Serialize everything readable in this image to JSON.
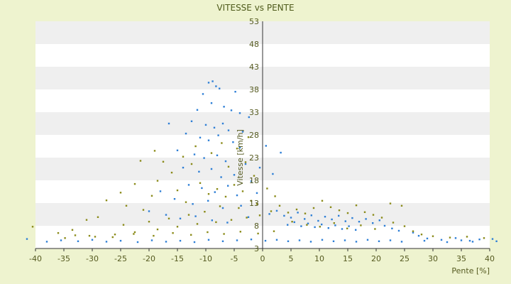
{
  "chart_data": {
    "type": "scatter",
    "title": "VITESSE vs PENTE",
    "xlabel": "Pente [%]",
    "ylabel": "Vitesse [km/h]",
    "xlim": [
      -40,
      40
    ],
    "ylim": [
      3,
      53
    ],
    "x_ticks": [
      "-40",
      "-35",
      "-30",
      "-25",
      "-20",
      "-15",
      "-10",
      "-5",
      "0",
      "5",
      "10",
      "15",
      "20",
      "25",
      "30",
      "35",
      "40"
    ],
    "y_ticks": [
      "3",
      "8",
      "13",
      "18",
      "23",
      "28",
      "33",
      "38",
      "43",
      "48",
      "53"
    ],
    "grid": "alternating horizontal bands",
    "colors": {
      "background": "#eef3cf",
      "band_light": "#ffffff",
      "band_dark": "#efefef",
      "axis": "#333333",
      "series_1": "#2e7fd6",
      "series_2": "#8b8b1a"
    },
    "series": [
      {
        "color": "#2e7fd6",
        "points": [
          [
            -9.5,
            39.5
          ],
          [
            -8.8,
            39.8
          ],
          [
            -8.2,
            38.7
          ],
          [
            -7.6,
            38.2
          ],
          [
            -10.5,
            37.0
          ],
          [
            -4.8,
            37.5
          ],
          [
            -11.5,
            33.5
          ],
          [
            -9.0,
            35.0
          ],
          [
            -6.8,
            34.2
          ],
          [
            -5.5,
            33.4
          ],
          [
            -4.0,
            32.8
          ],
          [
            -2.4,
            31.9
          ],
          [
            -12.5,
            31.0
          ],
          [
            -10.0,
            30.2
          ],
          [
            -8.5,
            29.6
          ],
          [
            -7.0,
            30.5
          ],
          [
            -6.0,
            29.0
          ],
          [
            -3.5,
            28.7
          ],
          [
            -13.5,
            28.3
          ],
          [
            -11.0,
            27.4
          ],
          [
            -9.5,
            26.8
          ],
          [
            -7.8,
            27.9
          ],
          [
            -5.2,
            26.4
          ],
          [
            -4.0,
            25.2
          ],
          [
            -15.0,
            24.6
          ],
          [
            -12.0,
            23.7
          ],
          [
            -10.3,
            22.9
          ],
          [
            -8.0,
            23.5
          ],
          [
            -6.5,
            22.2
          ],
          [
            -3.0,
            21.6
          ],
          [
            -16.5,
            30.5
          ],
          [
            -14.0,
            20.8
          ],
          [
            -11.2,
            19.9
          ],
          [
            -9.0,
            20.5
          ],
          [
            -7.3,
            18.7
          ],
          [
            -5.0,
            19.2
          ],
          [
            -2.0,
            17.8
          ],
          [
            -13.0,
            17.0
          ],
          [
            -10.7,
            16.3
          ],
          [
            -8.4,
            15.4
          ],
          [
            -6.1,
            16.8
          ],
          [
            -4.5,
            14.7
          ],
          [
            -18.0,
            15.6
          ],
          [
            -15.5,
            13.9
          ],
          [
            -12.3,
            12.8
          ],
          [
            -9.6,
            13.5
          ],
          [
            -7.0,
            11.9
          ],
          [
            -3.8,
            12.4
          ],
          [
            -1.0,
            15.2
          ],
          [
            -0.5,
            20.8
          ],
          [
            0.6,
            25.6
          ],
          [
            1.8,
            19.4
          ],
          [
            3.2,
            24.1
          ],
          [
            -20.0,
            11.2
          ],
          [
            -17.0,
            10.4
          ],
          [
            -14.5,
            9.6
          ],
          [
            -11.8,
            10.1
          ],
          [
            -8.9,
            9.2
          ],
          [
            -6.2,
            8.7
          ],
          [
            -2.5,
            9.9
          ],
          [
            1.2,
            10.6
          ],
          [
            2.5,
            11.3
          ],
          [
            3.8,
            10.2
          ],
          [
            5.0,
            9.8
          ],
          [
            6.2,
            10.9
          ],
          [
            7.4,
            9.5
          ],
          [
            8.6,
            10.3
          ],
          [
            9.8,
            9.1
          ],
          [
            11.0,
            10.0
          ],
          [
            12.2,
            9.4
          ],
          [
            13.4,
            10.2
          ],
          [
            14.6,
            9.0
          ],
          [
            15.8,
            9.7
          ],
          [
            17.0,
            8.9
          ],
          [
            18.2,
            9.5
          ],
          [
            19.4,
            8.6
          ],
          [
            20.6,
            9.2
          ],
          [
            4.4,
            8.2
          ],
          [
            5.6,
            8.8
          ],
          [
            6.8,
            7.9
          ],
          [
            8.0,
            8.5
          ],
          [
            9.2,
            7.7
          ],
          [
            10.4,
            8.3
          ],
          [
            11.6,
            7.5
          ],
          [
            12.8,
            8.1
          ],
          [
            14.0,
            7.3
          ],
          [
            15.2,
            7.9
          ],
          [
            16.4,
            7.1
          ],
          [
            21.5,
            8.0
          ],
          [
            22.8,
            7.4
          ],
          [
            24.0,
            6.9
          ],
          [
            26.5,
            6.5
          ],
          [
            27.5,
            5.8
          ],
          [
            29.0,
            5.2
          ],
          [
            31.5,
            4.9
          ],
          [
            34.0,
            5.3
          ],
          [
            36.5,
            4.7
          ],
          [
            38.2,
            5.0
          ],
          [
            40.5,
            5.1
          ],
          [
            41.2,
            4.6
          ],
          [
            -41.5,
            5.1
          ],
          [
            -38.0,
            4.5
          ],
          [
            -35.5,
            4.8
          ],
          [
            -32.5,
            4.6
          ],
          [
            -30.0,
            4.9
          ],
          [
            -27.5,
            4.5
          ],
          [
            -25.0,
            4.7
          ],
          [
            -22.0,
            4.4
          ],
          [
            -19.5,
            4.8
          ],
          [
            -17.0,
            4.5
          ],
          [
            -14.5,
            4.7
          ],
          [
            -12.0,
            4.4
          ],
          [
            -9.5,
            4.9
          ],
          [
            -7.0,
            4.6
          ],
          [
            -4.5,
            4.8
          ],
          [
            -2.0,
            5.0
          ],
          [
            0.5,
            4.7
          ],
          [
            2.5,
            4.9
          ],
          [
            4.5,
            4.6
          ],
          [
            6.5,
            4.8
          ],
          [
            8.5,
            4.5
          ],
          [
            10.5,
            4.9
          ],
          [
            12.5,
            4.6
          ],
          [
            14.5,
            4.8
          ],
          [
            16.5,
            4.5
          ],
          [
            18.5,
            4.9
          ],
          [
            20.5,
            4.6
          ],
          [
            22.5,
            4.8
          ],
          [
            24.5,
            4.5
          ],
          [
            28.5,
            4.7
          ],
          [
            32.5,
            4.4
          ],
          [
            35.0,
            4.8
          ],
          [
            37.0,
            4.5
          ]
        ]
      },
      {
        "color": "#8b8b1a",
        "points": [
          [
            -21.5,
            22.3
          ],
          [
            -19.0,
            24.5
          ],
          [
            -17.5,
            22.1
          ],
          [
            -14.0,
            23.2
          ],
          [
            -12.5,
            21.6
          ],
          [
            -16.0,
            19.7
          ],
          [
            -18.5,
            17.9
          ],
          [
            -22.5,
            17.2
          ],
          [
            -25.0,
            15.3
          ],
          [
            -27.5,
            13.6
          ],
          [
            -24.0,
            12.4
          ],
          [
            -21.0,
            11.5
          ],
          [
            -19.5,
            14.6
          ],
          [
            -15.0,
            15.8
          ],
          [
            -13.5,
            13.2
          ],
          [
            -11.0,
            17.4
          ],
          [
            -9.5,
            15.0
          ],
          [
            -8.0,
            16.1
          ],
          [
            -6.5,
            14.4
          ],
          [
            -5.0,
            17.0
          ],
          [
            -3.5,
            15.6
          ],
          [
            -2.0,
            13.5
          ],
          [
            -1.0,
            12.8
          ],
          [
            -4.2,
            11.9
          ],
          [
            -7.5,
            12.3
          ],
          [
            -10.2,
            11.1
          ],
          [
            -13.0,
            10.4
          ],
          [
            -16.5,
            9.6
          ],
          [
            -20.0,
            8.9
          ],
          [
            -24.5,
            8.2
          ],
          [
            -29.0,
            9.9
          ],
          [
            -31.0,
            9.3
          ],
          [
            -33.5,
            7.1
          ],
          [
            -36.0,
            6.4
          ],
          [
            -33.0,
            5.9
          ],
          [
            -29.5,
            5.6
          ],
          [
            -26.0,
            6.1
          ],
          [
            -22.5,
            6.6
          ],
          [
            -18.5,
            7.2
          ],
          [
            -15.0,
            7.8
          ],
          [
            -11.5,
            8.4
          ],
          [
            -8.2,
            8.8
          ],
          [
            -5.5,
            9.3
          ],
          [
            -2.8,
            9.8
          ],
          [
            -0.5,
            10.3
          ],
          [
            1.5,
            11.2
          ],
          [
            3.0,
            12.4
          ],
          [
            4.5,
            10.9
          ],
          [
            6.0,
            11.6
          ],
          [
            7.5,
            10.7
          ],
          [
            9.0,
            11.9
          ],
          [
            10.5,
            13.5
          ],
          [
            12.0,
            12.1
          ],
          [
            13.5,
            11.4
          ],
          [
            15.0,
            10.8
          ],
          [
            16.5,
            12.5
          ],
          [
            18.0,
            11.0
          ],
          [
            19.5,
            10.4
          ],
          [
            21.0,
            9.8
          ],
          [
            22.5,
            12.9
          ],
          [
            24.5,
            12.4
          ],
          [
            23.0,
            8.7
          ],
          [
            25.0,
            7.9
          ],
          [
            26.5,
            6.8
          ],
          [
            28.0,
            6.1
          ],
          [
            30.0,
            5.7
          ],
          [
            33.0,
            5.4
          ],
          [
            36.0,
            5.6
          ],
          [
            39.0,
            5.3
          ],
          [
            5.2,
            8.9
          ],
          [
            7.8,
            8.2
          ],
          [
            10.1,
            7.8
          ],
          [
            12.6,
            8.6
          ],
          [
            14.9,
            7.4
          ],
          [
            17.3,
            8.1
          ],
          [
            19.8,
            7.3
          ],
          [
            2.0,
            6.8
          ],
          [
            -0.8,
            6.3
          ],
          [
            -3.9,
            6.7
          ],
          [
            -6.8,
            6.2
          ],
          [
            -9.7,
            6.6
          ],
          [
            -12.6,
            6.0
          ],
          [
            -15.8,
            6.4
          ],
          [
            -19.2,
            5.8
          ],
          [
            -22.7,
            6.2
          ],
          [
            -26.4,
            5.5
          ],
          [
            -30.5,
            5.8
          ],
          [
            -34.8,
            5.3
          ],
          [
            -1.5,
            19.0
          ],
          [
            0.8,
            16.2
          ],
          [
            2.2,
            14.5
          ],
          [
            -3.0,
            22.0
          ],
          [
            -6.0,
            21.0
          ],
          [
            -9.0,
            24.0
          ],
          [
            -11.8,
            25.5
          ],
          [
            -7.2,
            26.2
          ],
          [
            -4.5,
            25.0
          ],
          [
            -2.5,
            27.5
          ],
          [
            -40.5,
            7.8
          ]
        ]
      }
    ]
  }
}
